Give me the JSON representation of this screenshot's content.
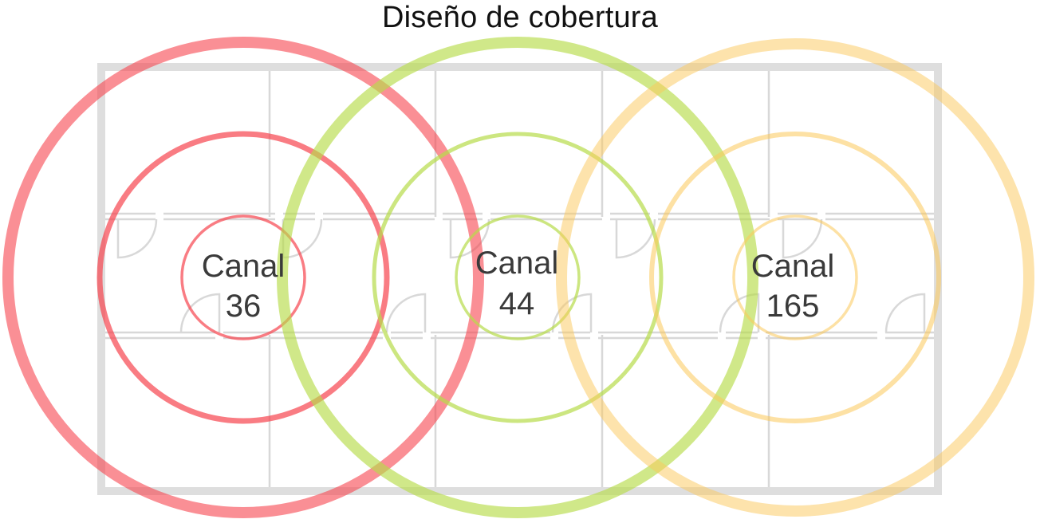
{
  "title": "Diseño de cobertura",
  "channels": [
    {
      "line1": "Canal",
      "line2": "36",
      "color": "#f7444e",
      "outer_ring_opacity": 0.6,
      "inner_ring_opacity": 0.7
    },
    {
      "line1": "Canal",
      "line2": "44",
      "color": "#b7dc4a",
      "outer_ring_opacity": 0.65,
      "inner_ring_opacity": 0.7
    },
    {
      "line1": "Canal",
      "line2": "165",
      "color": "#fcc85a",
      "outer_ring_opacity": 0.5,
      "inner_ring_opacity": 0.55
    }
  ],
  "floor_plan": {
    "wall_color": "#dedede",
    "inner_wall_color": "#d8d8d8"
  }
}
